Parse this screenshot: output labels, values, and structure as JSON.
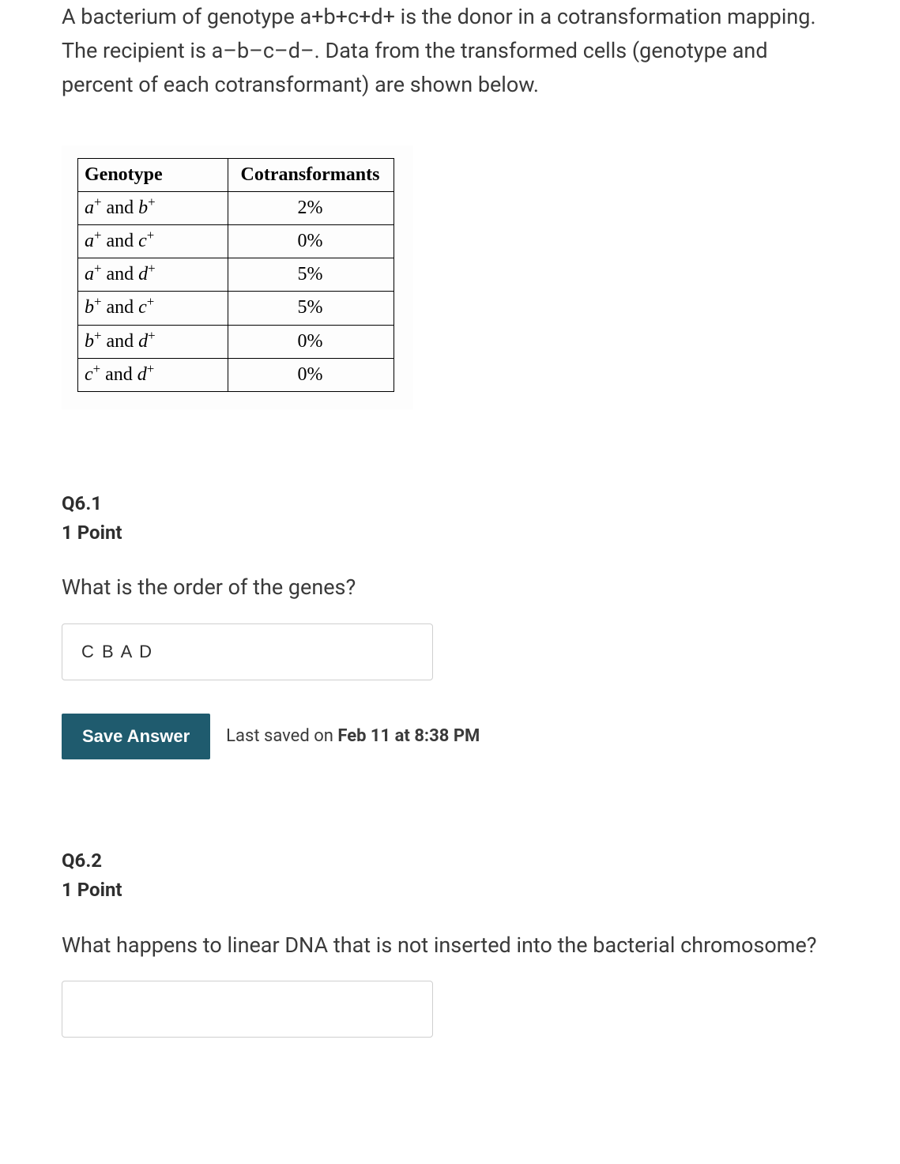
{
  "intro_text": "A bacterium of genotype a+b+c+d+ is the donor in a cotransformation mapping. The recipient is a–b–c–d–. Data from the transformed cells (genotype and percent of each cotransformant) are shown below.",
  "table": {
    "columns": [
      "Genotype",
      "Cotransformants"
    ],
    "header_fontweight": "bold",
    "font_family": "Times New Roman",
    "border_color": "#000000",
    "rows": [
      {
        "genotype_html": "a+ and b+",
        "value": "2%"
      },
      {
        "genotype_html": "a+ and c+",
        "value": "0%"
      },
      {
        "genotype_html": "a+ and d+",
        "value": "5%"
      },
      {
        "genotype_html": "b+ and c+",
        "value": "5%"
      },
      {
        "genotype_html": "b+ and d+",
        "value": "0%"
      },
      {
        "genotype_html": "c+ and d+",
        "value": "0%"
      }
    ]
  },
  "q6_1": {
    "label": "Q6.1",
    "points": "1 Point",
    "question": "What is the order of the genes?",
    "answer_value": "C B A D",
    "save_button_label": "Save Answer",
    "saved_prefix": "Last saved on ",
    "saved_timestamp": "Feb 11 at 8:38 PM"
  },
  "q6_2": {
    "label": "Q6.2",
    "points": "1 Point",
    "question": "What happens to linear DNA that is not inserted into the bacterial chromosome?",
    "answer_value": ""
  },
  "colors": {
    "background": "#f5f5f5",
    "page_bg": "#ffffff",
    "text": "#3a3a3a",
    "button_bg": "#1f5b6e",
    "button_text": "#ffffff",
    "input_border": "#cfcfcf"
  }
}
